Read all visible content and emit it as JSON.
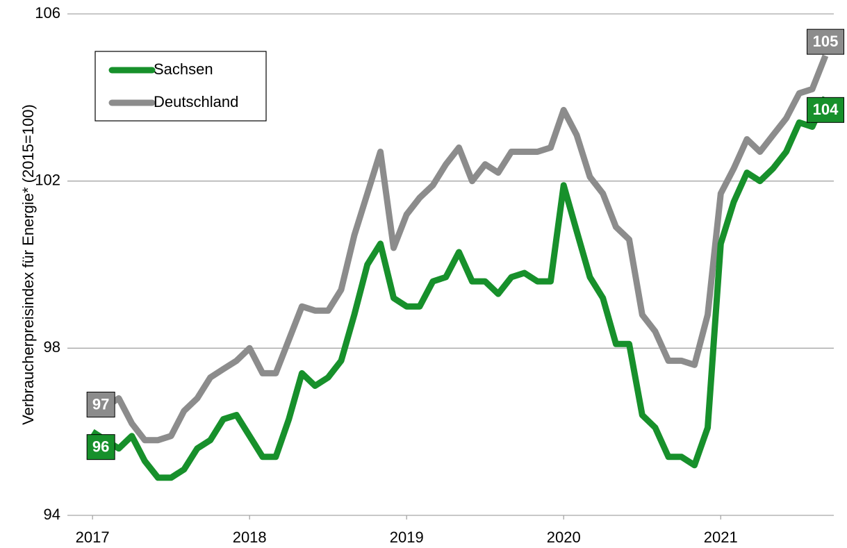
{
  "chart_data": {
    "type": "line",
    "y_label": "Verbraucherpreisindex für Energie* (2015=100)",
    "x": [
      2017,
      2017.083,
      2017.167,
      2017.25,
      2017.333,
      2017.417,
      2017.5,
      2017.583,
      2017.667,
      2017.75,
      2017.833,
      2017.917,
      2018,
      2018.083,
      2018.167,
      2018.25,
      2018.333,
      2018.417,
      2018.5,
      2018.583,
      2018.667,
      2018.75,
      2018.833,
      2018.917,
      2019,
      2019.083,
      2019.167,
      2019.25,
      2019.333,
      2019.417,
      2019.5,
      2019.583,
      2019.667,
      2019.75,
      2019.833,
      2019.917,
      2020,
      2020.083,
      2020.167,
      2020.25,
      2020.333,
      2020.417,
      2020.5,
      2020.583,
      2020.667,
      2020.75,
      2020.833,
      2020.917,
      2021,
      2021.083,
      2021.167,
      2021.25,
      2021.333,
      2021.417,
      2021.5,
      2021.583,
      2021.667
    ],
    "series": [
      {
        "name": "Sachsen",
        "color": "#17902b",
        "values": [
          96.0,
          95.8,
          95.6,
          95.9,
          95.3,
          94.9,
          94.9,
          95.1,
          95.6,
          95.8,
          96.3,
          96.4,
          95.9,
          95.4,
          95.4,
          96.3,
          97.4,
          97.1,
          97.3,
          97.7,
          98.8,
          100.0,
          100.5,
          99.2,
          99.0,
          99.0,
          99.6,
          99.7,
          100.3,
          99.6,
          99.6,
          99.3,
          99.7,
          99.8,
          99.6,
          99.6,
          101.9,
          100.8,
          99.7,
          99.2,
          98.1,
          98.1,
          96.4,
          96.1,
          95.4,
          95.4,
          95.2,
          96.1,
          100.5,
          101.5,
          102.2,
          102.0,
          102.3,
          102.7,
          103.4,
          103.3,
          104.0
        ],
        "value_labels": [
          "96",
          null,
          null,
          null,
          null,
          null,
          null,
          null,
          null,
          null,
          null,
          null,
          null,
          null,
          null,
          null,
          null,
          null,
          null,
          null,
          null,
          null,
          null,
          null,
          null,
          null,
          null,
          null,
          null,
          null,
          null,
          null,
          null,
          null,
          null,
          null,
          null,
          null,
          null,
          null,
          null,
          null,
          null,
          null,
          null,
          null,
          null,
          null,
          null,
          null,
          null,
          null,
          null,
          null,
          null,
          null,
          "104"
        ]
      },
      {
        "name": "Deutschland",
        "color": "#8c8c8c",
        "values": [
          96.9,
          96.6,
          96.8,
          96.2,
          95.8,
          95.8,
          95.9,
          96.5,
          96.8,
          97.3,
          97.5,
          97.7,
          98.0,
          97.4,
          97.4,
          98.2,
          99.0,
          98.9,
          98.9,
          99.4,
          100.7,
          101.7,
          102.7,
          100.4,
          101.2,
          101.6,
          101.9,
          102.4,
          102.8,
          102.0,
          102.4,
          102.2,
          102.7,
          102.7,
          102.7,
          102.8,
          103.7,
          103.1,
          102.1,
          101.7,
          100.9,
          100.6,
          98.8,
          98.4,
          97.7,
          97.7,
          97.6,
          98.8,
          101.7,
          102.3,
          103.0,
          102.7,
          103.1,
          103.5,
          104.1,
          104.2,
          105.0
        ],
        "value_labels": [
          "97",
          null,
          null,
          null,
          null,
          null,
          null,
          null,
          null,
          null,
          null,
          null,
          null,
          null,
          null,
          null,
          null,
          null,
          null,
          null,
          null,
          null,
          null,
          null,
          null,
          null,
          null,
          null,
          null,
          null,
          null,
          null,
          null,
          null,
          null,
          null,
          null,
          null,
          null,
          null,
          null,
          null,
          null,
          null,
          null,
          null,
          null,
          null,
          null,
          null,
          null,
          null,
          null,
          null,
          null,
          null,
          "105"
        ]
      }
    ],
    "xlim": [
      2016.84,
      2021.72
    ],
    "xticks": [
      2017,
      2018,
      2019,
      2020,
      2021
    ],
    "ylim": [
      94,
      106
    ],
    "yticks": [
      94,
      98,
      102,
      106
    ],
    "grid": true,
    "legend": "upper left"
  }
}
